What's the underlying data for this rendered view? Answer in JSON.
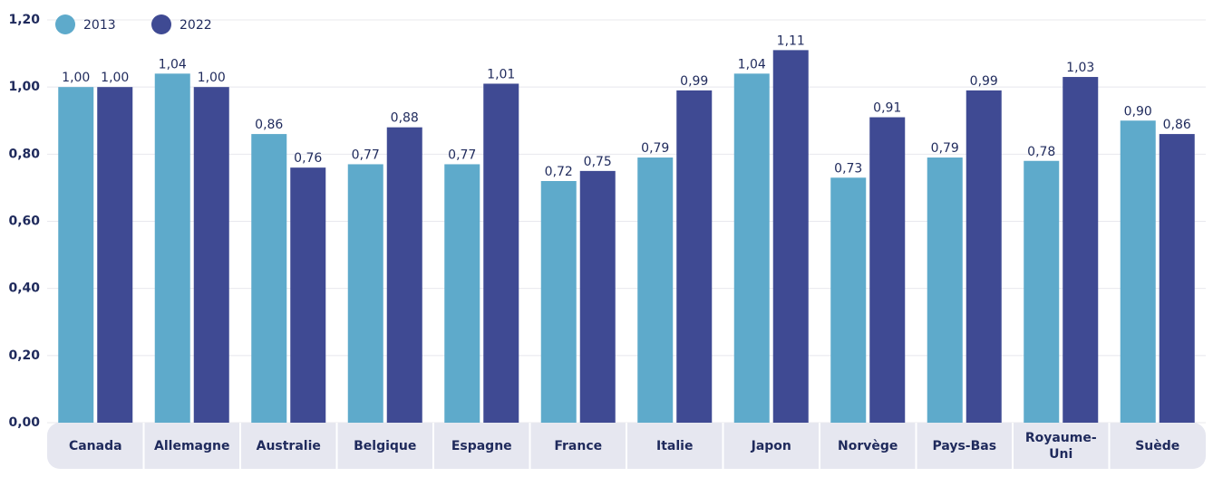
{
  "chart_data": {
    "type": "bar",
    "categories": [
      "Canada",
      "Allemagne",
      "Australie",
      "Belgique",
      "Espagne",
      "France",
      "Italie",
      "Japon",
      "Norvège",
      "Pays-Bas",
      "Royaume-Uni",
      "Suède"
    ],
    "series": [
      {
        "name": "2013",
        "color": "#5eaacb",
        "values": [
          1.0,
          1.04,
          0.86,
          0.77,
          0.77,
          0.72,
          0.79,
          1.04,
          0.73,
          0.79,
          0.78,
          0.9
        ],
        "value_labels": [
          "1,00",
          "1,04",
          "0,86",
          "0,77",
          "0,77",
          "0,72",
          "0,79",
          "1,04",
          "0,73",
          "0,79",
          "0,78",
          "0,90"
        ]
      },
      {
        "name": "2022",
        "color": "#3f4a93",
        "values": [
          1.0,
          1.0,
          0.76,
          0.88,
          1.01,
          0.75,
          0.99,
          1.11,
          0.91,
          0.99,
          1.03,
          0.86
        ],
        "value_labels": [
          "1,00",
          "1,00",
          "0,76",
          "0,88",
          "1,01",
          "0,75",
          "0,99",
          "1,11",
          "0,91",
          "0,99",
          "1,03",
          "0,86"
        ]
      }
    ],
    "ylim": [
      0,
      1.2
    ],
    "yticks": [
      {
        "value": 0,
        "label": "0,00"
      },
      {
        "value": 0.2,
        "label": "0,20"
      },
      {
        "value": 0.4,
        "label": "0,40"
      },
      {
        "value": 0.6,
        "label": "0,60"
      },
      {
        "value": 0.8,
        "label": "0,80"
      },
      {
        "value": 1.0,
        "label": "1,00"
      },
      {
        "value": 1.2,
        "label": "1,20"
      }
    ],
    "grid": true
  }
}
